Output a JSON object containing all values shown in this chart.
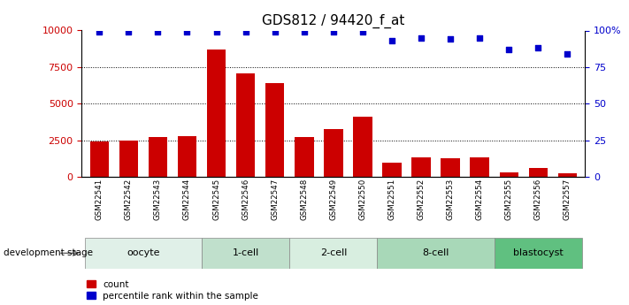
{
  "title": "GDS812 / 94420_f_at",
  "samples": [
    "GSM22541",
    "GSM22542",
    "GSM22543",
    "GSM22544",
    "GSM22545",
    "GSM22546",
    "GSM22547",
    "GSM22548",
    "GSM22549",
    "GSM22550",
    "GSM22551",
    "GSM22552",
    "GSM22553",
    "GSM22554",
    "GSM22555",
    "GSM22556",
    "GSM22557"
  ],
  "counts": [
    2400,
    2500,
    2750,
    2800,
    8700,
    7100,
    6400,
    2750,
    3250,
    4100,
    950,
    1350,
    1300,
    1350,
    300,
    600,
    250
  ],
  "percentiles": [
    99,
    99,
    99,
    99,
    99,
    99,
    99,
    99,
    99,
    99,
    93,
    95,
    94,
    95,
    87,
    88,
    84
  ],
  "bar_color": "#cc0000",
  "dot_color": "#0000cc",
  "ylim_left": [
    0,
    10000
  ],
  "ylim_right": [
    0,
    100
  ],
  "yticks_left": [
    0,
    2500,
    5000,
    7500,
    10000
  ],
  "yticks_right": [
    0,
    25,
    50,
    75,
    100
  ],
  "stages": [
    {
      "label": "oocyte",
      "start": 0,
      "end": 3,
      "color": "#e0f0e8"
    },
    {
      "label": "1-cell",
      "start": 4,
      "end": 6,
      "color": "#c0e0cc"
    },
    {
      "label": "2-cell",
      "start": 7,
      "end": 9,
      "color": "#d8eee0"
    },
    {
      "label": "8-cell",
      "start": 10,
      "end": 13,
      "color": "#a8d8b8"
    },
    {
      "label": "blastocyst",
      "start": 14,
      "end": 16,
      "color": "#60c080"
    }
  ],
  "title_fontsize": 11,
  "legend_red_label": "count",
  "legend_blue_label": "percentile rank within the sample",
  "dev_stage_label": "development stage"
}
